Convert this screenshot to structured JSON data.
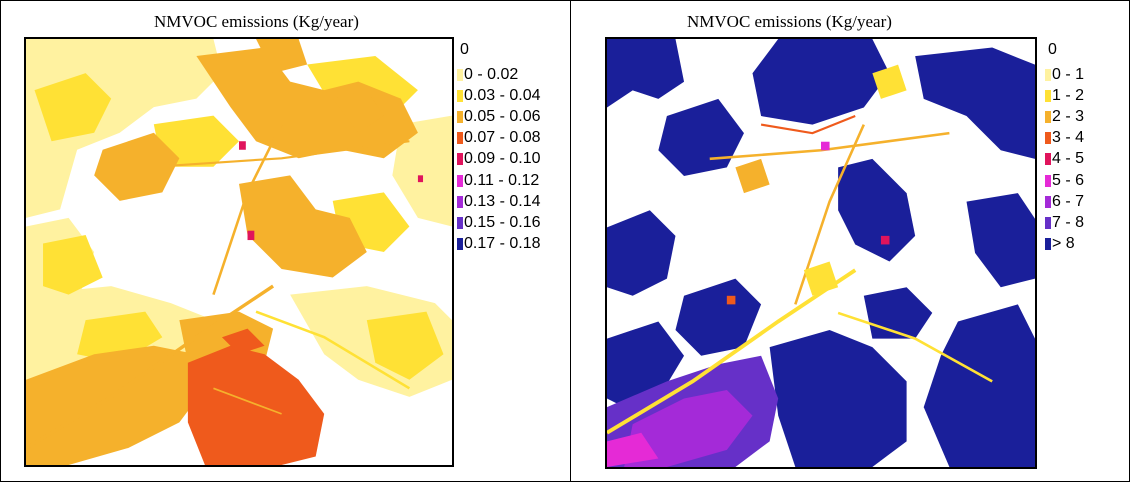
{
  "maps": [
    {
      "title": "NMVOC emissions (Kg/year)",
      "legend": {
        "header": "0",
        "classes": [
          {
            "label": "0 - 0.02",
            "color": "#fff2a0"
          },
          {
            "label": "0.03 - 0.04",
            "color": "#ffe135"
          },
          {
            "label": "0.05 - 0.06",
            "color": "#f5b12c"
          },
          {
            "label": "0.07 - 0.08",
            "color": "#ef5a1c"
          },
          {
            "label": "0.09 - 0.10",
            "color": "#e0145c"
          },
          {
            "label": "0.11 - 0.12",
            "color": "#e52ad6"
          },
          {
            "label": "0.13 - 0.14",
            "color": "#a42ad8"
          },
          {
            "label": "0.15 - 0.16",
            "color": "#6630c8"
          },
          {
            "label": "0.17 - 0.18",
            "color": "#1a1f9a"
          }
        ]
      }
    },
    {
      "title": "NMVOC emissions (Kg/year)",
      "legend": {
        "header": "0",
        "classes": [
          {
            "label": "0 - 1",
            "color": "#fff2a0"
          },
          {
            "label": "1 - 2",
            "color": "#ffe135"
          },
          {
            "label": "2 - 3",
            "color": "#f5b12c"
          },
          {
            "label": "3 - 4",
            "color": "#ef5a1c"
          },
          {
            "label": "4 - 5",
            "color": "#e0145c"
          },
          {
            "label": "5 - 6",
            "color": "#e52ad6"
          },
          {
            "label": "6 - 7",
            "color": "#a42ad8"
          },
          {
            "label": "7 - 8",
            "color": "#6630c8"
          },
          {
            "label": "> 8",
            "color": "#1a1f9a"
          }
        ]
      }
    }
  ]
}
